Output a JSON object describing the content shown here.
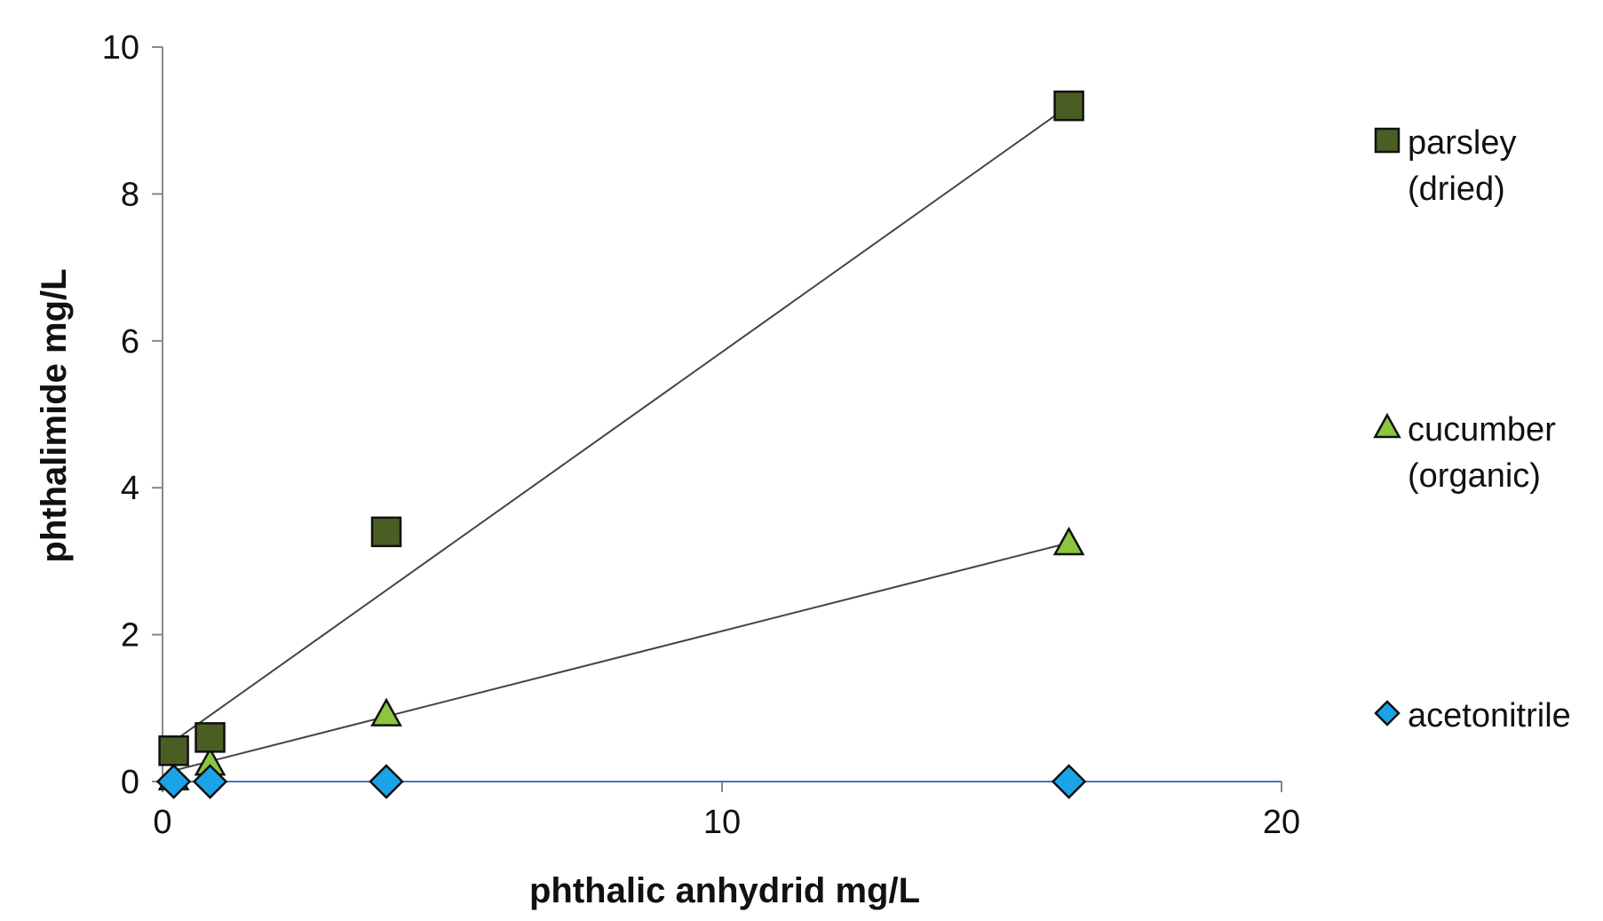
{
  "chart_data": {
    "type": "scatter",
    "xlabel": "phthalic anhydrid mg/L",
    "ylabel": "phthalimide mg/L",
    "xlim": [
      0,
      20
    ],
    "ylim": [
      0,
      10
    ],
    "x_ticks": [
      "0",
      "10",
      "20"
    ],
    "y_ticks": [
      "0",
      "2",
      "4",
      "6",
      "8",
      "10"
    ],
    "grid": false,
    "legend_position": "right",
    "series": [
      {
        "name": "parsley (dried)",
        "name_lines": [
          "parsley",
          "(dried)"
        ],
        "marker": "square",
        "color": "#4a5e23",
        "x": [
          0.2,
          0.85,
          4.0,
          16.2
        ],
        "y": [
          0.42,
          0.6,
          3.4,
          9.2
        ],
        "trendline": {
          "x": [
            0.2,
            16.2
          ],
          "y": [
            0.55,
            9.2
          ],
          "color": "#444444"
        }
      },
      {
        "name": "cucumber (organic)",
        "name_lines": [
          "cucumber",
          "(organic)"
        ],
        "marker": "triangle",
        "color": "#8cc63f",
        "x": [
          0.2,
          0.85,
          4.0,
          16.2
        ],
        "y": [
          0.05,
          0.25,
          0.92,
          3.25
        ],
        "trendline": {
          "x": [
            0.2,
            16.2
          ],
          "y": [
            0.15,
            3.25
          ],
          "color": "#444444"
        }
      },
      {
        "name": "acetonitrile",
        "name_lines": [
          "acetonitrile"
        ],
        "marker": "diamond",
        "color": "#1aa3e8",
        "x": [
          0.2,
          0.85,
          4.0,
          16.2
        ],
        "y": [
          0,
          0,
          0,
          0
        ],
        "trendline": {
          "x": [
            0,
            20
          ],
          "y": [
            0,
            0
          ],
          "color": "#4472c4"
        }
      }
    ]
  }
}
